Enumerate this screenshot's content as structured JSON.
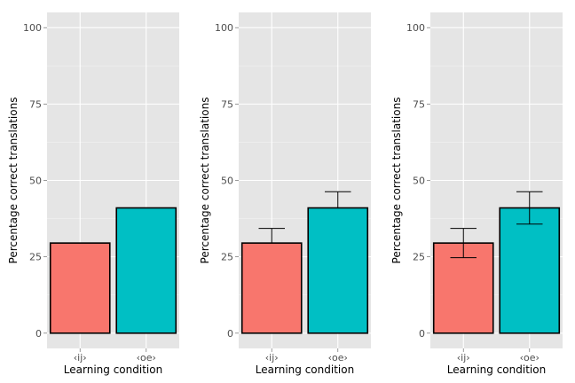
{
  "chart_data": [
    {
      "type": "bar",
      "title": "",
      "xlabel": "Learning condition",
      "ylabel": "Percentage correct translations",
      "categories": [
        "‹ij›",
        "‹oe›"
      ],
      "values": [
        29.5,
        41
      ],
      "colors": [
        "#F8766D",
        "#00BFC4"
      ],
      "ylim": [
        -5,
        105
      ],
      "yticks": [
        0,
        25,
        50,
        75,
        100
      ],
      "grid": true,
      "error_bars": "none"
    },
    {
      "type": "bar",
      "title": "",
      "xlabel": "Learning condition",
      "ylabel": "Percentage correct translations",
      "categories": [
        "‹ij›",
        "‹oe›"
      ],
      "values": [
        29.5,
        41
      ],
      "colors": [
        "#F8766D",
        "#00BFC4"
      ],
      "ylim": [
        -5,
        105
      ],
      "yticks": [
        0,
        25,
        50,
        75,
        100
      ],
      "grid": true,
      "error_bars": "upper",
      "err_upper": [
        34.3,
        46.3
      ]
    },
    {
      "type": "bar",
      "title": "",
      "xlabel": "Learning condition",
      "ylabel": "Percentage correct translations",
      "categories": [
        "‹ij›",
        "‹oe›"
      ],
      "values": [
        29.5,
        41
      ],
      "colors": [
        "#F8766D",
        "#00BFC4"
      ],
      "ylim": [
        -5,
        105
      ],
      "yticks": [
        0,
        25,
        50,
        75,
        100
      ],
      "grid": true,
      "error_bars": "both",
      "err_lower": [
        24.7,
        35.7
      ],
      "err_upper": [
        34.3,
        46.3
      ]
    }
  ]
}
